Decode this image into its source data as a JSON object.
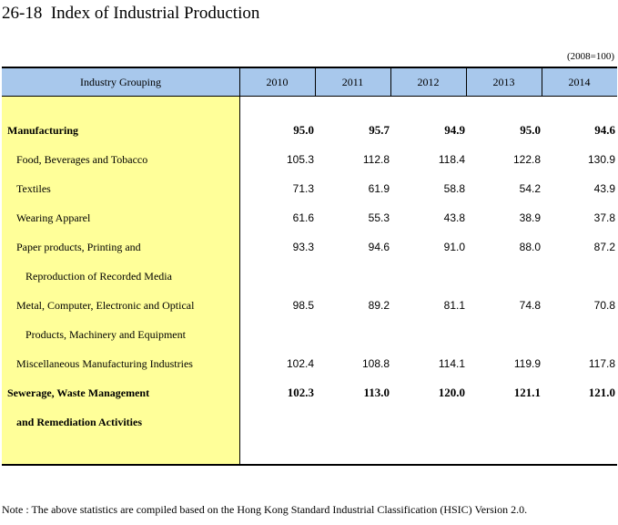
{
  "title": "26-18  Index of Industrial Production",
  "base_note": "(2008=100)",
  "header": {
    "grouping_label": "Industry Grouping",
    "years": [
      "2010",
      "2011",
      "2012",
      "2013",
      "2014"
    ]
  },
  "rows": [
    {
      "label": "Manufacturing",
      "bold": true,
      "indent": 0,
      "values": [
        "95.0",
        "95.7",
        "94.9",
        "95.0",
        "94.6"
      ]
    },
    {
      "label": "Food, Beverages and Tobacco",
      "bold": false,
      "indent": 1,
      "values": [
        "105.3",
        "112.8",
        "118.4",
        "122.8",
        "130.9"
      ]
    },
    {
      "label": "Textiles",
      "bold": false,
      "indent": 1,
      "values": [
        "71.3",
        "61.9",
        "58.8",
        "54.2",
        "43.9"
      ]
    },
    {
      "label": "Wearing Apparel",
      "bold": false,
      "indent": 1,
      "values": [
        "61.6",
        "55.3",
        "43.8",
        "38.9",
        "37.8"
      ]
    },
    {
      "label": "Paper products, Printing and",
      "bold": false,
      "indent": 1,
      "values": [
        "93.3",
        "94.6",
        "91.0",
        "88.0",
        "87.2"
      ]
    },
    {
      "label": "Reproduction of Recorded Media",
      "bold": false,
      "indent": 2,
      "values": [
        "",
        "",
        "",
        "",
        ""
      ]
    },
    {
      "label": "Metal, Computer, Electronic and Optical",
      "bold": false,
      "indent": 1,
      "values": [
        "98.5",
        "89.2",
        "81.1",
        "74.8",
        "70.8"
      ]
    },
    {
      "label": "Products, Machinery and Equipment",
      "bold": false,
      "indent": 2,
      "values": [
        "",
        "",
        "",
        "",
        ""
      ]
    },
    {
      "label": "Miscellaneous Manufacturing Industries",
      "bold": false,
      "indent": 1,
      "values": [
        "102.4",
        "108.8",
        "114.1",
        "119.9",
        "117.8"
      ]
    },
    {
      "label": "Sewerage, Waste Management",
      "bold": true,
      "indent": 0,
      "values": [
        "102.3",
        "113.0",
        "120.0",
        "121.1",
        "121.0"
      ]
    },
    {
      "label": "and Remediation Activities",
      "bold": true,
      "indent": 0.5,
      "values": [
        "",
        "",
        "",
        "",
        ""
      ]
    }
  ],
  "note": "Note : The above statistics are compiled based on the Hong Kong Standard Industrial Classification (HSIC) Version 2.0.",
  "colors": {
    "header_bg": "#a8c8ec",
    "label_column_bg": "#ffff99"
  }
}
